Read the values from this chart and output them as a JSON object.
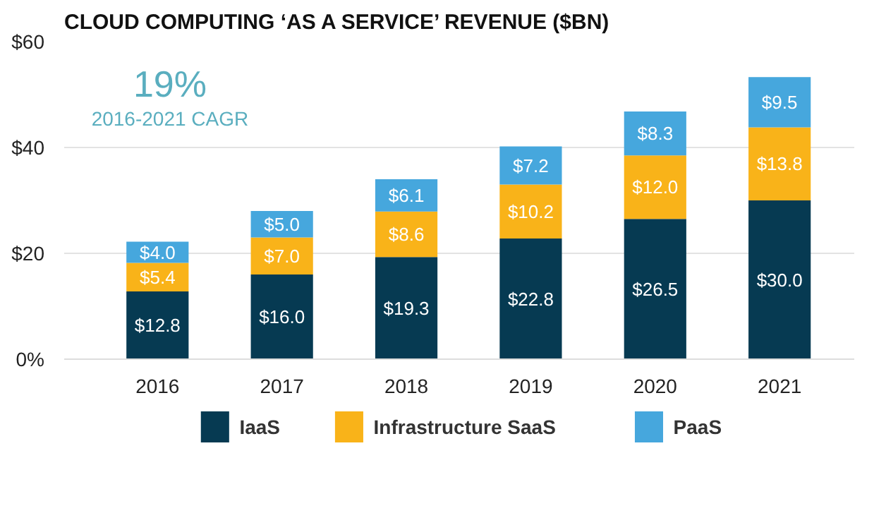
{
  "chart_data": {
    "type": "bar",
    "stacked": true,
    "title": "CLOUD COMPUTING ‘AS A SERVICE’ REVENUE ($BN)",
    "categories": [
      "2016",
      "2017",
      "2018",
      "2019",
      "2020",
      "2021"
    ],
    "series": [
      {
        "name": "IaaS",
        "color": "#063a52",
        "values": [
          12.8,
          16.0,
          19.3,
          22.8,
          26.5,
          30.0
        ],
        "value_labels": [
          "$12.8",
          "$16.0",
          "$19.3",
          "$22.8",
          "$26.5",
          "$30.0"
        ]
      },
      {
        "name": "Infrastructure SaaS",
        "color": "#f9b319",
        "values": [
          5.4,
          7.0,
          8.6,
          10.2,
          12.0,
          13.8
        ],
        "value_labels": [
          "$5.4",
          "$7.0",
          "$8.6",
          "$10.2",
          "$12.0",
          "$13.8"
        ]
      },
      {
        "name": "PaaS",
        "color": "#46a7dd",
        "values": [
          4.0,
          5.0,
          6.1,
          7.2,
          8.3,
          9.5
        ],
        "value_labels": [
          "$4.0",
          "$5.0",
          "$6.1",
          "$7.2",
          "$8.3",
          "$9.5"
        ]
      }
    ],
    "ylim": [
      0,
      60
    ],
    "yticks": [
      {
        "value": 0,
        "label": "0%"
      },
      {
        "value": 20,
        "label": "$20"
      },
      {
        "value": 40,
        "label": "$40"
      },
      {
        "value": 60,
        "label": "$60"
      }
    ],
    "grid": "y",
    "legend": "bottom",
    "annotations": [
      "19%",
      "2016-2021 CAGR"
    ]
  }
}
